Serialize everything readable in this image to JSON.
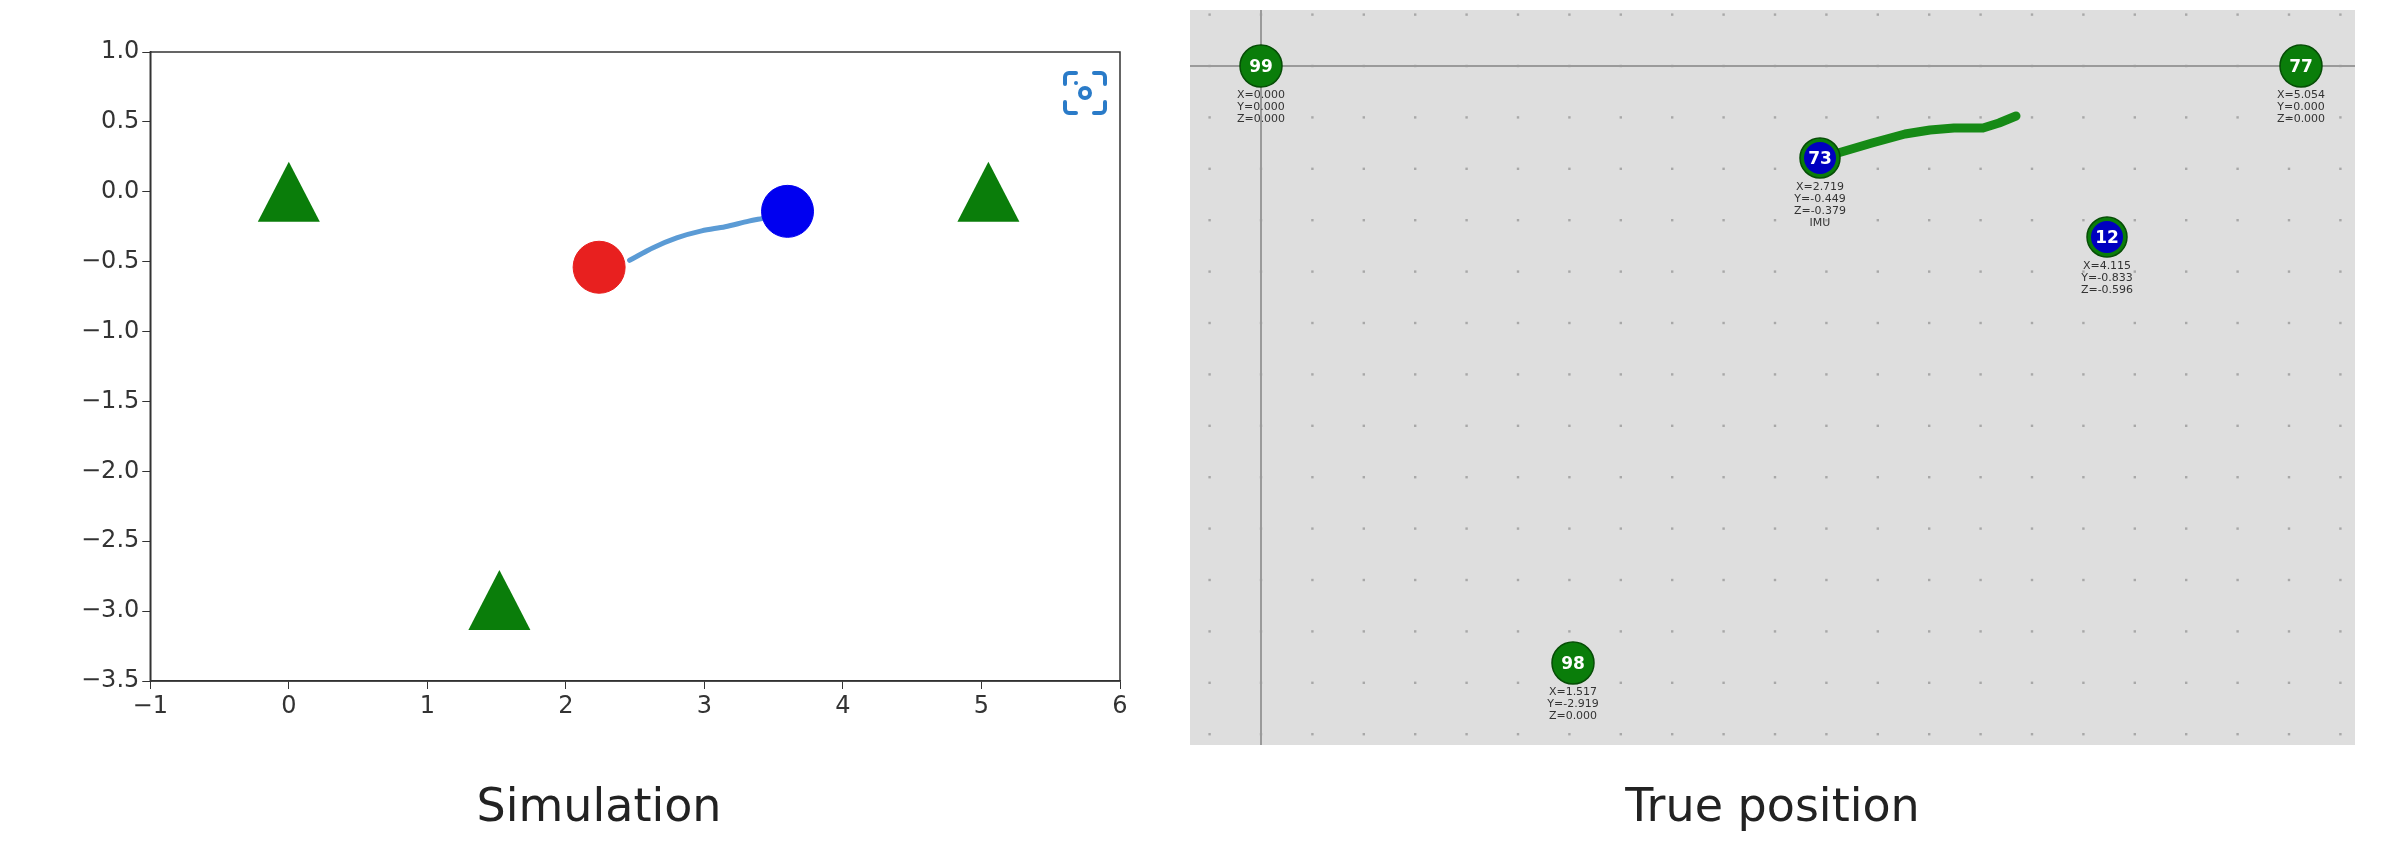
{
  "chart_data": [
    {
      "type": "scatter",
      "title": "Simulation",
      "xlim": [
        -1,
        6
      ],
      "xticks": [
        {
          "value": -1,
          "label": "−1"
        },
        0,
        1,
        2,
        3,
        4,
        5,
        6
      ],
      "ylim": [
        -3.5,
        1
      ],
      "yticks": [
        {
          "value": -3.5,
          "label": "−3.5"
        },
        {
          "value": -3,
          "label": "−3.0"
        },
        {
          "value": -2.5,
          "label": "−2.5"
        },
        {
          "value": -2,
          "label": "−2.0"
        },
        {
          "value": -1.5,
          "label": "−1.5"
        },
        {
          "value": -1,
          "label": "−1.0"
        },
        {
          "value": -0.5,
          "label": "−0.5"
        },
        {
          "value": 0,
          "label": "0.0"
        },
        {
          "value": 0.5,
          "label": "0.5"
        },
        {
          "value": 1,
          "label": "1.0"
        }
      ],
      "series": [
        {
          "type": "line",
          "color": "#5b9bd5",
          "x": [
            2.46,
            2.63,
            2.8,
            2.98,
            3.15,
            3.32,
            3.42
          ],
          "values": [
            -0.49,
            -0.4,
            -0.33,
            -0.28,
            -0.25,
            -0.21,
            -0.19
          ]
        },
        {
          "type": "scatter",
          "marker": "triangle",
          "color": "#0a7d0a",
          "x": [
            0,
            5.05,
            1.52
          ],
          "values": [
            0,
            0,
            -2.92
          ]
        },
        {
          "type": "scatter",
          "marker": "circle",
          "color": "#e8201f",
          "x": [
            2.24
          ],
          "values": [
            -0.54
          ]
        },
        {
          "type": "scatter",
          "marker": "circle",
          "color": "#0000f0",
          "x": [
            3.6
          ],
          "values": [
            -0.14
          ]
        }
      ]
    },
    {
      "type": "other",
      "title": "True position",
      "annotations": [
        "99\nX=0.000\nY=0.000\nZ=0.000",
        "77\nX=5.054\nY=0.000\nZ=0.000",
        "98\nX=1.517\nY=-2.919\nZ=0.000",
        "73\nX=2.719\nY=-0.449\nZ=-0.379\nIMU",
        "12\nX=4.115\nY=-0.833\nZ=-0.596"
      ]
    }
  ]
}
